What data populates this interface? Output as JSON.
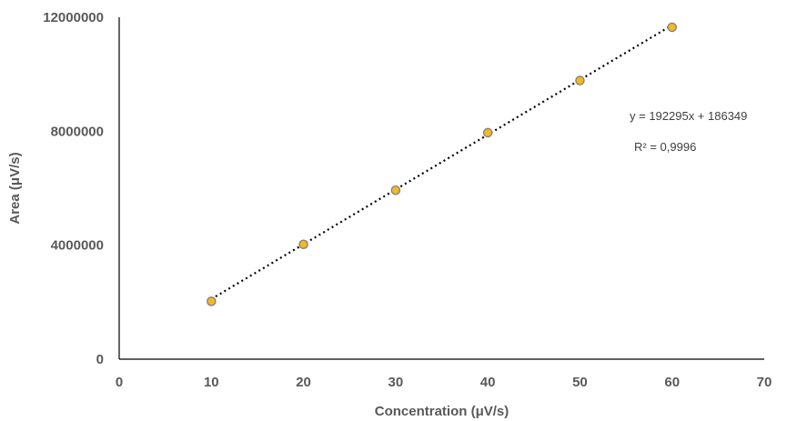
{
  "chart_data": {
    "type": "scatter",
    "title": "",
    "xlabel": "Concentration (μV/s)",
    "ylabel": "Area (μV/s)",
    "xlim": [
      0,
      70
    ],
    "ylim": [
      0,
      12000000
    ],
    "xticks": [
      "0",
      "10",
      "20",
      "30",
      "40",
      "50",
      "60",
      "70"
    ],
    "yticks": [
      "0",
      "4000000",
      "8000000",
      "12000000"
    ],
    "grid": false,
    "legend": "none",
    "series": [
      {
        "x": [
          10,
          20,
          30,
          40,
          50,
          60
        ],
        "y": [
          2030000,
          4030000,
          5930000,
          7950000,
          9780000,
          11650000
        ],
        "marker_color": "#f4b921",
        "marker_edge": "#7f7f7f"
      }
    ],
    "trendline": {
      "type": "linear",
      "slope": 192295,
      "intercept": 186349,
      "x_range": [
        10,
        60
      ],
      "style": "dotted",
      "color": "#000000",
      "equation_label": "y = 192295x + 186349",
      "r2_label": "R² = 0,9996"
    }
  }
}
